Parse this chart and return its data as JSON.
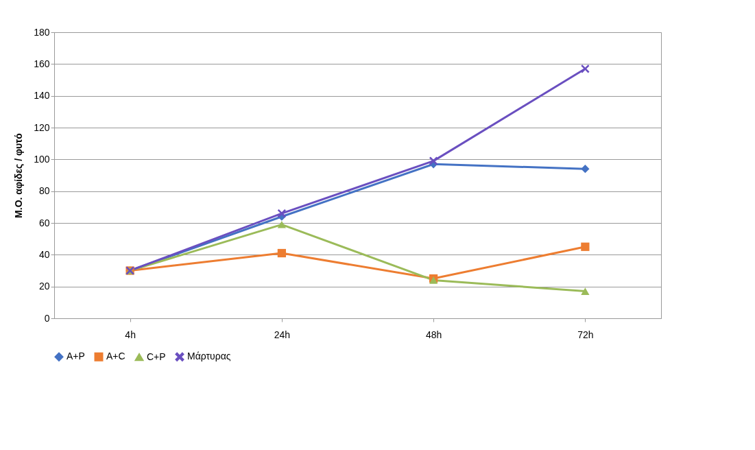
{
  "chart_data": {
    "type": "line",
    "ylabel": "Μ.Ο. αφίδες / φυτό",
    "categories": [
      "4h",
      "24h",
      "48h",
      "72h"
    ],
    "ylim": [
      0,
      180
    ],
    "yticks": [
      0,
      20,
      40,
      60,
      80,
      100,
      120,
      140,
      160,
      180
    ],
    "grid": "y",
    "legend": "bottom",
    "series": [
      {
        "name": "A+P",
        "color": "#4472c4",
        "marker": "diamond",
        "values": [
          30,
          64,
          97,
          94
        ]
      },
      {
        "name": "A+C",
        "color": "#ed7d31",
        "marker": "square",
        "values": [
          30,
          41,
          25,
          45
        ]
      },
      {
        "name": "C+P",
        "color": "#9bbb59",
        "marker": "triangle",
        "values": [
          30,
          59,
          24,
          17
        ]
      },
      {
        "name": "Μάρτυρας",
        "color": "#6a4fc0",
        "marker": "cross",
        "values": [
          30,
          66,
          99,
          157
        ]
      }
    ]
  }
}
